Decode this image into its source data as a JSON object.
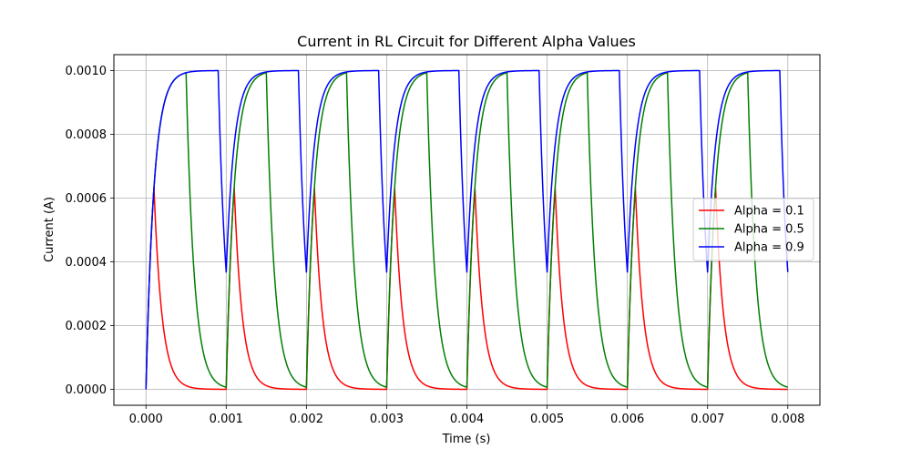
{
  "chart_data": {
    "type": "line",
    "title": "Current in RL Circuit for Different Alpha Values",
    "xlabel": "Time (s)",
    "ylabel": "Current (A)",
    "xlim": [
      -0.0004,
      0.0084
    ],
    "ylim": [
      -5e-05,
      0.00105
    ],
    "x_ticks": [
      0,
      0.001,
      0.002,
      0.003,
      0.004,
      0.005,
      0.006,
      0.007,
      0.008
    ],
    "x_tick_labels": [
      "0.000",
      "0.001",
      "0.002",
      "0.003",
      "0.004",
      "0.005",
      "0.006",
      "0.007",
      "0.008"
    ],
    "y_ticks": [
      0,
      0.0002,
      0.0004,
      0.0006,
      0.0008,
      0.001
    ],
    "y_tick_labels": [
      "0.0000",
      "0.0002",
      "0.0004",
      "0.0006",
      "0.0008",
      "0.0010"
    ],
    "grid": true,
    "legend_position": "center-right",
    "period_s": 0.001,
    "time_constant_s": 0.0001,
    "final_current_A": 0.001,
    "t_start_s": 0,
    "t_end_s": 0.008,
    "series": [
      {
        "name": "Alpha = 0.1",
        "alpha": 0.1,
        "color": "#ff0000"
      },
      {
        "name": "Alpha = 0.5",
        "alpha": 0.5,
        "color": "#008000"
      },
      {
        "name": "Alpha = 0.9",
        "alpha": 0.9,
        "color": "#0000ff"
      }
    ]
  }
}
